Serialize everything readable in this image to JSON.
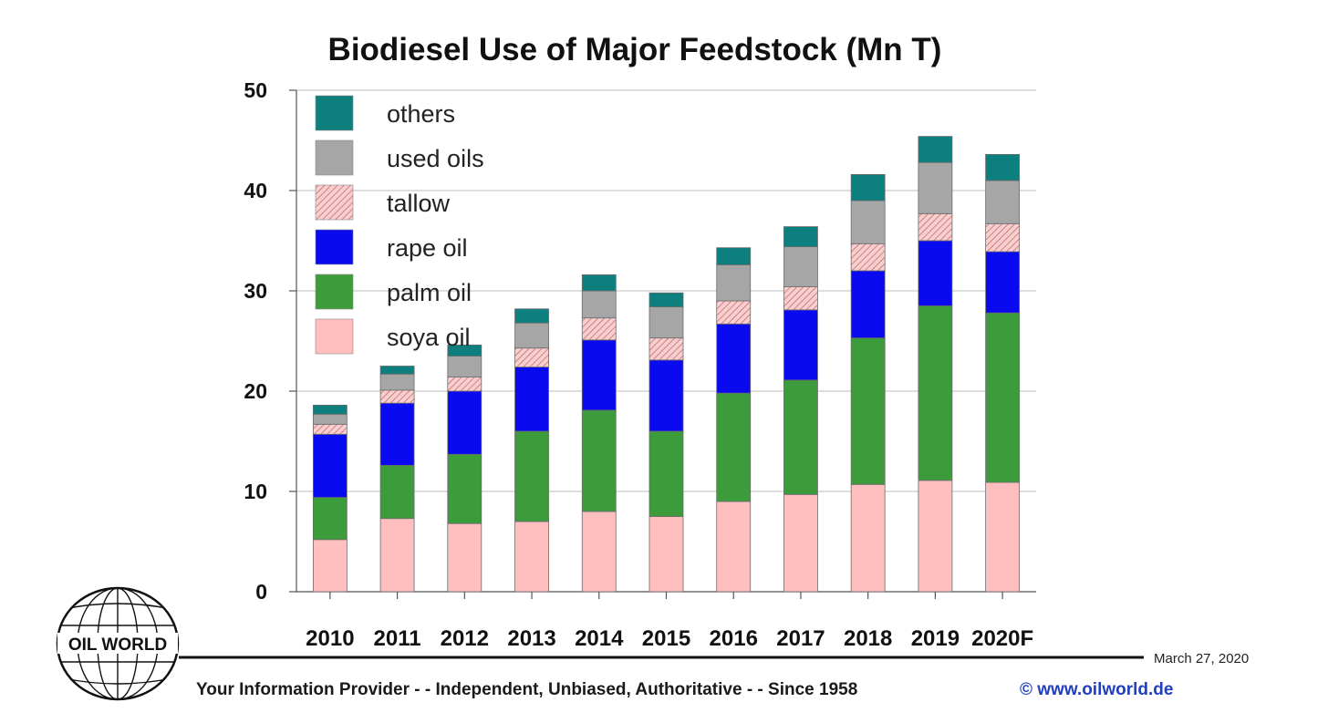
{
  "chart_data": {
    "type": "bar",
    "stacked": true,
    "title": "Biodiesel Use of Major Feedstock (Mn T)",
    "categories": [
      "2010",
      "2011",
      "2012",
      "2013",
      "2014",
      "2015",
      "2016",
      "2017",
      "2018",
      "2019",
      "2020F"
    ],
    "ylim": [
      0,
      50
    ],
    "yticks": [
      0,
      10,
      20,
      30,
      40,
      50
    ],
    "grid": true,
    "legend_position": "top-left",
    "series": [
      {
        "name": "soya oil",
        "color": "#ffbfbf",
        "values": [
          5.2,
          7.3,
          6.8,
          7.0,
          8.0,
          7.5,
          9.0,
          9.7,
          10.7,
          11.1,
          10.9
        ]
      },
      {
        "name": "palm oil",
        "color": "#3c9c3c",
        "values": [
          4.2,
          5.3,
          6.9,
          9.0,
          10.1,
          8.5,
          10.8,
          11.4,
          14.6,
          17.4,
          16.9
        ]
      },
      {
        "name": "rape oil",
        "color": "#0a0af0",
        "values": [
          6.3,
          6.2,
          6.3,
          6.4,
          7.0,
          7.1,
          6.9,
          7.0,
          6.7,
          6.5,
          6.1
        ]
      },
      {
        "name": "tallow",
        "color": "#f4c4c4",
        "pattern": "hatched",
        "values": [
          1.0,
          1.3,
          1.4,
          1.9,
          2.2,
          2.2,
          2.3,
          2.3,
          2.7,
          2.7,
          2.8
        ]
      },
      {
        "name": "used oils",
        "color": "#a6a6a6",
        "values": [
          1.0,
          1.6,
          2.1,
          2.5,
          2.7,
          3.1,
          3.6,
          4.0,
          4.3,
          5.1,
          4.3
        ]
      },
      {
        "name": "others",
        "color": "#0e7f7f",
        "values": [
          0.9,
          0.8,
          1.1,
          1.4,
          1.6,
          1.4,
          1.7,
          2.0,
          2.6,
          2.6,
          2.6
        ]
      }
    ]
  },
  "footer": {
    "tagline": "Your Information Provider - - Independent, Unbiased, Authoritative - - Since 1958",
    "url": "© www.oilworld.de",
    "date": "March 27, 2020"
  },
  "logo": {
    "text": "OIL WORLD"
  }
}
